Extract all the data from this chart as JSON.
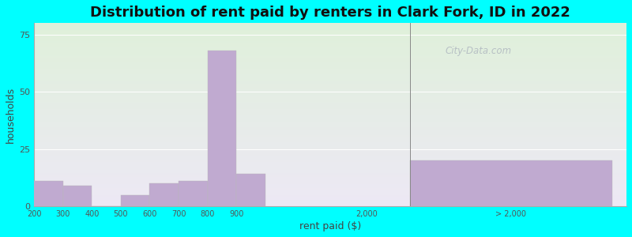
{
  "title": "Distribution of rent paid by renters in Clark Fork, ID in 2022",
  "xlabel": "rent paid ($)",
  "ylabel": "households",
  "bar_color": "#c0aad0",
  "background_color": "#00ffff",
  "plot_bg_top": "#dff0da",
  "plot_bg_bottom": "#ede8f5",
  "yticks": [
    0,
    25,
    50,
    75
  ],
  "ylim": [
    0,
    80
  ],
  "cluster_labels": [
    "200",
    "300",
    "400",
    "500",
    "600",
    "700",
    "800",
    "900"
  ],
  "cluster_values": [
    11,
    9,
    0,
    5,
    10,
    11,
    68,
    14
  ],
  "tick_2000_label": "2,000",
  "gt2000_label": "> 2,000",
  "gt2000_value": 20,
  "title_fontsize": 13,
  "axis_label_fontsize": 9,
  "watermark": "City-Data.com"
}
